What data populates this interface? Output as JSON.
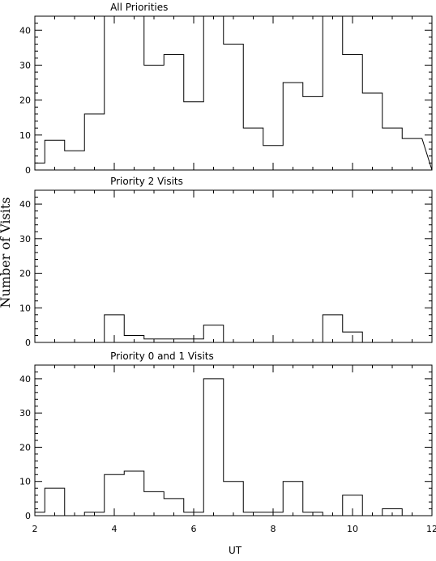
{
  "figure": {
    "ylabel": "Number of Visits",
    "xlabel": "UT"
  },
  "chart_data": [
    {
      "type": "bar",
      "title": "All Priorities",
      "xlim": [
        2,
        12
      ],
      "ylim": [
        0,
        44
      ],
      "xticks": [
        2,
        4,
        6,
        8,
        10,
        12
      ],
      "yticks": [
        0,
        10,
        20,
        30,
        40
      ],
      "bin_edges": [
        2.0,
        2.25,
        2.75,
        3.25,
        3.75,
        4.25,
        4.75,
        5.25,
        5.75,
        6.25,
        6.75,
        7.25,
        7.75,
        8.25,
        8.75,
        9.25,
        9.75,
        10.25,
        10.75,
        11.25,
        11.75
      ],
      "values": [
        2,
        8.5,
        5.5,
        16,
        44,
        44,
        30,
        33,
        19.5,
        44,
        36,
        12,
        7,
        25,
        21,
        44,
        33,
        22,
        12,
        9
      ]
    },
    {
      "type": "bar",
      "title": "Priority 2 Visits",
      "xlim": [
        2,
        12
      ],
      "ylim": [
        0,
        44
      ],
      "xticks": [
        2,
        4,
        6,
        8,
        10,
        12
      ],
      "yticks": [
        0,
        10,
        20,
        30,
        40
      ],
      "bin_edges": [
        2.0,
        2.25,
        2.75,
        3.25,
        3.75,
        4.25,
        4.75,
        5.25,
        5.75,
        6.25,
        6.75,
        7.25,
        7.75,
        8.25,
        8.75,
        9.25,
        9.75,
        10.25,
        10.75,
        11.25,
        11.75
      ],
      "values": [
        0,
        0,
        0,
        0,
        8,
        2,
        1,
        1,
        1,
        5,
        0,
        0,
        0,
        0,
        0,
        8,
        3,
        0,
        0,
        0
      ]
    },
    {
      "type": "bar",
      "title": "Priority 0 and 1 Visits",
      "xlim": [
        2,
        12
      ],
      "ylim": [
        0,
        44
      ],
      "xticks": [
        2,
        4,
        6,
        8,
        10,
        12
      ],
      "yticks": [
        0,
        10,
        20,
        30,
        40
      ],
      "bin_edges": [
        2.0,
        2.25,
        2.75,
        3.25,
        3.75,
        4.25,
        4.75,
        5.25,
        5.75,
        6.25,
        6.75,
        7.25,
        7.75,
        8.25,
        8.75,
        9.25,
        9.75,
        10.25,
        10.75,
        11.25,
        11.75
      ],
      "values": [
        1,
        8,
        0,
        1,
        12,
        13,
        7,
        5,
        1,
        40,
        10,
        1,
        1,
        10,
        1,
        0,
        6,
        0,
        2,
        0
      ]
    }
  ]
}
